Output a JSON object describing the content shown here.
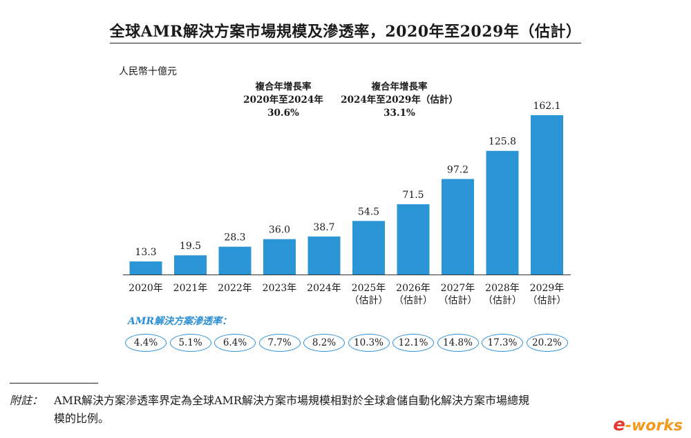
{
  "title": "全球AMR解決方案市場規模及滲透率，2020年至2029年（估計）",
  "unit_label": "人民幣十億元",
  "cagr": [
    {
      "line1": "複合年增長率",
      "line2": "2020年至2024年",
      "line3": "30.6%"
    },
    {
      "line1": "複合年增長率",
      "line2": "2024年至2029年（估計）",
      "line3": "33.1%"
    }
  ],
  "penetration_label": "AMR解決方案滲透率：",
  "note": {
    "prefix": "附註：",
    "line1": "AMR解決方案滲透率界定為全球AMR解決方案市場規模相對於全球倉儲自動化解決方案市場總規",
    "line2": "模的比例。"
  },
  "logo": {
    "e": "e",
    "text": "-works"
  },
  "colors": {
    "bar": "#2b95d6",
    "accent": "#2b8fd6",
    "logo": "#f39a1e"
  },
  "chart_data": {
    "type": "bar",
    "categories": [
      "2020年",
      "2021年",
      "2022年",
      "2023年",
      "2024年",
      "2025年（估計）",
      "2026年（估計）",
      "2027年（估計）",
      "2028年（估計）",
      "2029年（估計）"
    ],
    "category_lines": [
      [
        "2020年"
      ],
      [
        "2021年"
      ],
      [
        "2022年"
      ],
      [
        "2023年"
      ],
      [
        "2024年"
      ],
      [
        "2025年",
        "（估計）"
      ],
      [
        "2026年",
        "（估計）"
      ],
      [
        "2027年",
        "（估計）"
      ],
      [
        "2028年",
        "（估計）"
      ],
      [
        "2029年",
        "（估計）"
      ]
    ],
    "values": [
      13.3,
      19.5,
      28.3,
      36.0,
      38.7,
      54.5,
      71.5,
      97.2,
      125.8,
      162.1
    ],
    "value_labels": [
      "13.3",
      "19.5",
      "28.3",
      "36.0",
      "38.7",
      "54.5",
      "71.5",
      "97.2",
      "125.8",
      "162.1"
    ],
    "penetration": [
      "4.4%",
      "5.1%",
      "6.4%",
      "7.7%",
      "8.2%",
      "10.3%",
      "12.1%",
      "14.8%",
      "17.3%",
      "20.2%"
    ],
    "ylabel": "人民幣十億元",
    "ylim": [
      0,
      162.1
    ],
    "grid": false,
    "legend": "none"
  }
}
